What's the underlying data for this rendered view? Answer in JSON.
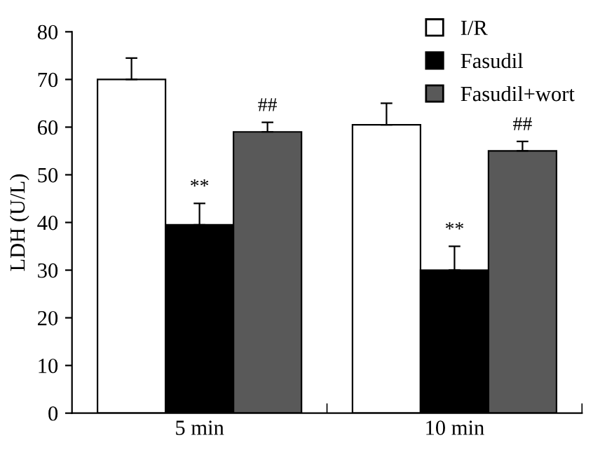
{
  "chart_data": {
    "type": "bar",
    "ylabel": "LDH (U/L)",
    "categories": [
      "5 min",
      "10 min"
    ],
    "series": [
      {
        "name": "I/R",
        "color": "#ffffff",
        "values": [
          70,
          60.5
        ],
        "errors": [
          [
            70,
            74.5
          ],
          [
            60.5,
            65
          ]
        ]
      },
      {
        "name": "Fasudil",
        "color": "#000000",
        "values": [
          39.5,
          30
        ],
        "errors": [
          [
            39.5,
            44
          ],
          [
            30,
            35
          ]
        ],
        "value_labels": [
          "**",
          "**"
        ]
      },
      {
        "name": "Fasudil+wort",
        "color": "#595959",
        "values": [
          59,
          55
        ],
        "errors": [
          [
            59,
            61
          ],
          [
            55,
            57
          ]
        ],
        "value_labels": [
          "##",
          "##"
        ]
      }
    ],
    "ylim": [
      0,
      80
    ],
    "yticks": [
      0,
      10,
      20,
      30,
      40,
      50,
      60,
      70,
      80
    ],
    "grid": false,
    "legend": "top right"
  }
}
